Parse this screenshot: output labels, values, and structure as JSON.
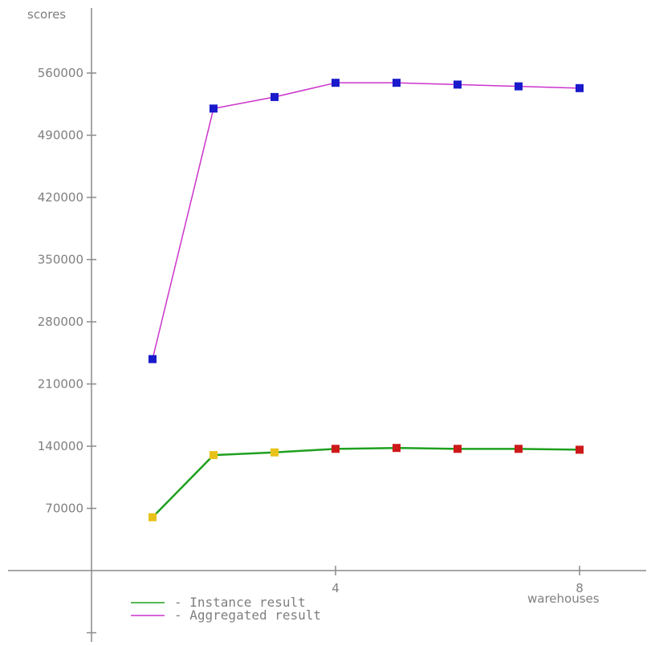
{
  "chart_data": {
    "type": "line",
    "title": "",
    "ylabel": "scores",
    "xlabel": "warehouses",
    "x": [
      1,
      2,
      3,
      4,
      5,
      6,
      7,
      8
    ],
    "x_ticks": [
      4,
      8
    ],
    "y_ticks": [
      70000,
      140000,
      210000,
      280000,
      350000,
      420000,
      490000,
      560000
    ],
    "ylim": [
      -70000,
      630000
    ],
    "xlim": [
      -1,
      9
    ],
    "grid": false,
    "legend_position": "bottom-left",
    "series": [
      {
        "name": "- Instance result",
        "line_color": "#1fa01f",
        "marker_colors": [
          "#e8c21a",
          "#e8c21a",
          "#e8c21a",
          "#cc1a1a",
          "#cc1a1a",
          "#cc1a1a",
          "#cc1a1a",
          "#cc1a1a"
        ],
        "values": [
          60000,
          130000,
          133000,
          137000,
          138000,
          137000,
          137000,
          136000
        ]
      },
      {
        "name": "- Aggregated result",
        "line_color": "#cc33cc",
        "marker_colors": [
          "#1a1acc",
          "#1a1acc",
          "#1a1acc",
          "#1a1acc",
          "#1a1acc",
          "#1a1acc",
          "#1a1acc",
          "#1a1acc"
        ],
        "values": [
          238000,
          520000,
          533000,
          549000,
          549000,
          547000,
          545000,
          543000
        ]
      }
    ]
  }
}
